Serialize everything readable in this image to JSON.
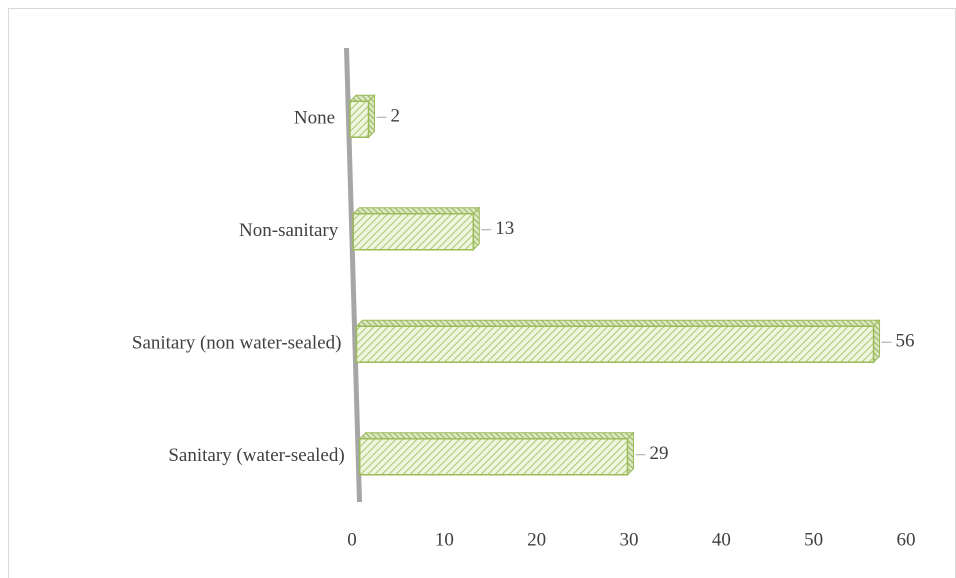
{
  "chart_data": {
    "type": "bar",
    "orientation": "horizontal",
    "categories": [
      "None",
      "Non-sanitary",
      "Sanitary (non water-sealed)",
      "Sanitary (water-sealed)"
    ],
    "values": [
      2,
      13,
      56,
      29
    ],
    "color": "#9bbb59",
    "xlim": [
      0,
      60
    ],
    "xticks": [
      0,
      10,
      20,
      30,
      40,
      50,
      60
    ],
    "grid": false
  }
}
